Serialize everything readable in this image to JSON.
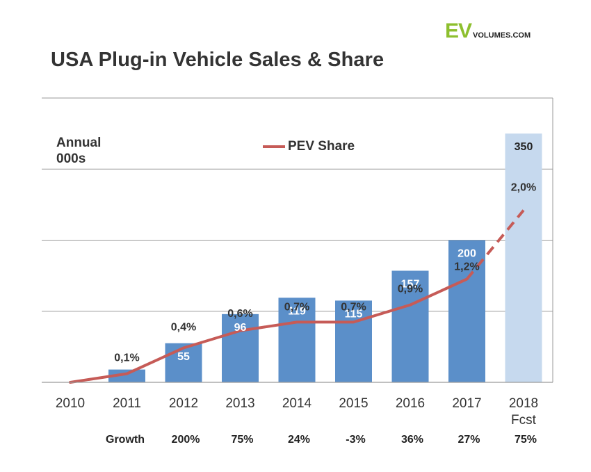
{
  "header": {
    "title": "USA Plug-in Vehicle Sales & Share",
    "logo_ev": "EV",
    "logo_rest": "VOLUMES.COM",
    "units_line1": "Annual",
    "units_line2": "000s"
  },
  "legend": {
    "label": "PEV Share"
  },
  "colors": {
    "bar": "#5b8fc9",
    "bar_forecast": "#c6d9ee",
    "line": "#c65b57",
    "grid": "#9a9a9a"
  },
  "chart_data": {
    "type": "bar",
    "title": "USA Plug-in Vehicle Sales & Share",
    "ylabel": "Annual 000s",
    "ylim": [
      0,
      400
    ],
    "grid": true,
    "legend_position": "top-center",
    "categories": [
      "2010",
      "2011",
      "2012",
      "2013",
      "2014",
      "2015",
      "2016",
      "2017",
      "2018"
    ],
    "category_sublabels": [
      "",
      "",
      "",
      "",
      "",
      "",
      "",
      "",
      "Fcst"
    ],
    "series": [
      {
        "name": "Sales",
        "kind": "bar",
        "values": [
          0,
          18,
          55,
          96,
          119,
          115,
          157,
          200,
          350
        ],
        "data_labels": [
          "",
          "",
          "55",
          "96",
          "119",
          "115",
          "157",
          "200",
          "350"
        ],
        "forecast_index": 8
      },
      {
        "name": "PEV Share",
        "kind": "line",
        "values_percent": [
          0.0,
          0.1,
          0.4,
          0.6,
          0.7,
          0.7,
          0.9,
          1.2,
          2.0
        ],
        "data_labels": [
          "",
          "0,1%",
          "0,4%",
          "0,6%",
          "0,7%",
          "0,7%",
          "0,9%",
          "1,2%",
          "2,0%"
        ],
        "dashed_from_index": 7
      }
    ],
    "growth_label": "Growth",
    "growth": [
      "200%",
      "75%",
      "24%",
      "-3%",
      "36%",
      "27%",
      "75%"
    ]
  }
}
